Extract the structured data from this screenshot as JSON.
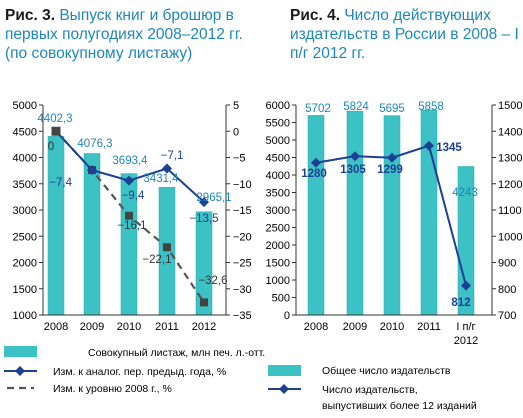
{
  "colors": {
    "bar": "#3cc1c4",
    "bar_edge": "#27a8ab",
    "line_navy": "#1e3f96",
    "line_dash": "#555555",
    "accent": "#1f87b8"
  },
  "chart_data": [
    {
      "type": "combo-bar-line",
      "title_prefix": "Рис. 3.",
      "title": "Выпуск книг и брошюр в первых полугодиях 2008–2012 гг. (по совокупному листажу)",
      "categories": [
        "2008",
        "2009",
        "2010",
        "2011",
        "2012"
      ],
      "y_left": {
        "min": 1000,
        "max": 5000,
        "ticks": [
          "1000",
          "1500",
          "2000",
          "2500",
          "3000",
          "3500",
          "4000",
          "4500",
          "5000"
        ]
      },
      "y_right": {
        "min": -35,
        "max": 5,
        "ticks": [
          "5",
          "0",
          "−5",
          "−10",
          "−15",
          "−20",
          "−25",
          "−30",
          "−35"
        ]
      },
      "grid": false,
      "series": [
        {
          "name": "Совокупный листаж, млн печ. л.-отт.",
          "kind": "bar",
          "axis": "left",
          "values": [
            4402.3,
            4076.3,
            3693.4,
            3431.4,
            2965.1
          ],
          "labels": [
            "4402,3",
            "4076,3",
            "3693,4",
            "3431,4",
            "2965,1"
          ]
        },
        {
          "name": "Изм. к аналог. пер. предыд. года, %",
          "kind": "line",
          "axis": "right",
          "values": [
            0,
            -7.4,
            -9.4,
            -7.1,
            -13.5
          ],
          "labels": [
            "0",
            "−7,4",
            "−9,4",
            "−7,1",
            "−13,5"
          ]
        },
        {
          "name": "Изм. к уровню 2008 г., %",
          "kind": "dashed-line",
          "axis": "right",
          "values": [
            0,
            -7.4,
            -16.1,
            -22.1,
            -32.6
          ],
          "labels": [
            "",
            "",
            "−16,1",
            "−22,1",
            "−32,6"
          ]
        }
      ]
    },
    {
      "type": "combo-bar-line",
      "title_prefix": "Рис. 4.",
      "title": "Число действующих издательств в России в 2008 – I п/г 2012 гг.",
      "categories": [
        "2008",
        "2009",
        "2010",
        "2011",
        "I п/г 2012"
      ],
      "y_left": {
        "min": 0,
        "max": 6000,
        "ticks": [
          "0",
          "500",
          "1000",
          "1500",
          "2000",
          "2500",
          "3000",
          "3500",
          "4000",
          "4500",
          "5000",
          "5500",
          "6000"
        ]
      },
      "y_right": {
        "min": 700,
        "max": 1500,
        "ticks": [
          "700",
          "800",
          "900",
          "1000",
          "1100",
          "1200",
          "1300",
          "1400",
          "1500"
        ]
      },
      "grid": false,
      "series": [
        {
          "name": "Общее число издательств",
          "kind": "bar",
          "axis": "left",
          "values": [
            5702,
            5824,
            5695,
            5858,
            4243
          ],
          "labels": [
            "5702",
            "5824",
            "5695",
            "5858",
            "4243"
          ]
        },
        {
          "name": "Число издательств, выпустивших более 12 изданий",
          "kind": "line",
          "axis": "right",
          "values": [
            1280,
            1305,
            1299,
            1345,
            812
          ],
          "labels": [
            "1280",
            "1305",
            "1299",
            "1345",
            "812"
          ]
        }
      ]
    }
  ]
}
